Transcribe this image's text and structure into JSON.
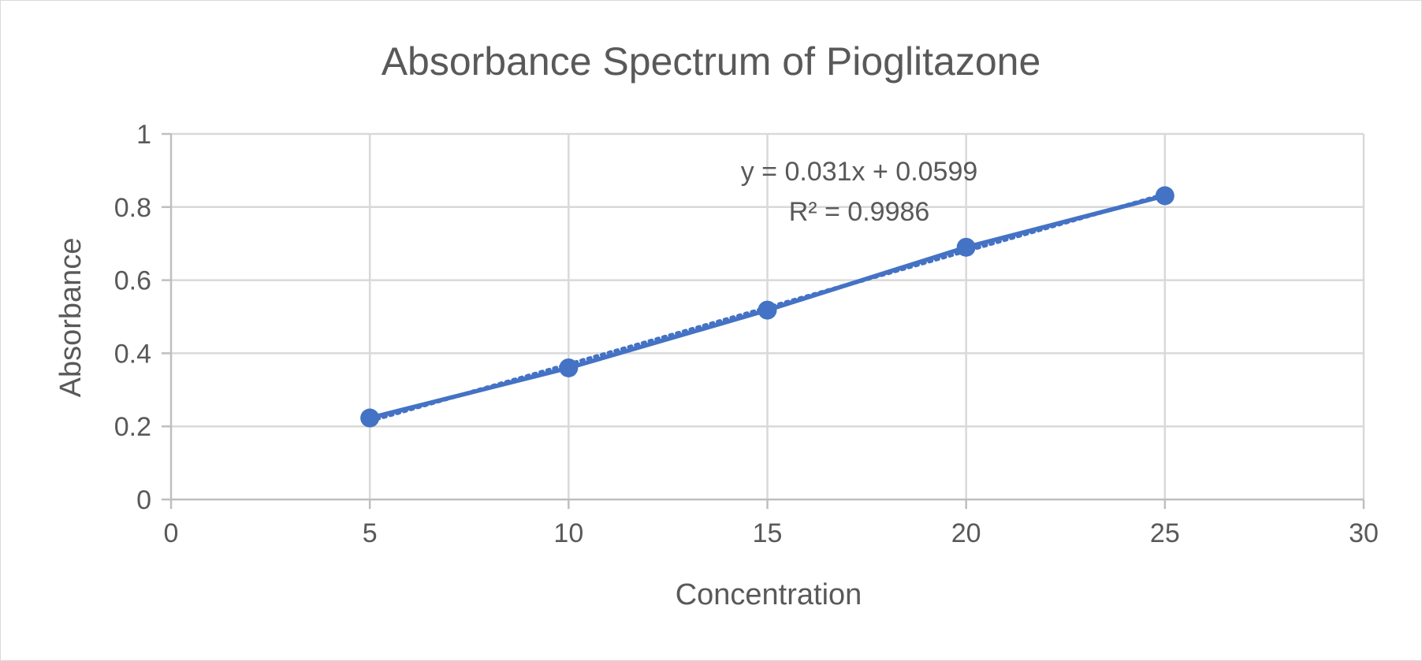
{
  "chart_data": {
    "type": "scatter",
    "title": "Absorbance Spectrum of Pioglitazone",
    "xlabel": "Concentration",
    "ylabel": "Absorbance",
    "xlim": [
      0,
      30
    ],
    "ylim": [
      0,
      1
    ],
    "x_ticks": [
      "0",
      "5",
      "10",
      "15",
      "20",
      "25",
      "30"
    ],
    "y_ticks": [
      "0",
      "0.2",
      "0.4",
      "0.6",
      "0.8",
      "1"
    ],
    "x_tick_values": [
      0,
      5,
      10,
      15,
      20,
      25,
      30
    ],
    "y_tick_values": [
      0,
      0.2,
      0.4,
      0.6,
      0.8,
      1
    ],
    "grid": true,
    "legend": "none",
    "series": [
      {
        "x": [
          5,
          10,
          15,
          20,
          25
        ],
        "y": [
          0.223,
          0.36,
          0.518,
          0.69,
          0.831
        ],
        "color": "#4472C4",
        "marker": "circle",
        "connected": true
      }
    ],
    "trendline": {
      "type": "linear",
      "slope": 0.031,
      "intercept": 0.0599,
      "style": "dotted",
      "color": "#4472C4",
      "x_range": [
        5,
        25
      ]
    },
    "annotations": {
      "equation": "y = 0.031x + 0.0599",
      "r_squared": "R² = 0.9986"
    }
  }
}
